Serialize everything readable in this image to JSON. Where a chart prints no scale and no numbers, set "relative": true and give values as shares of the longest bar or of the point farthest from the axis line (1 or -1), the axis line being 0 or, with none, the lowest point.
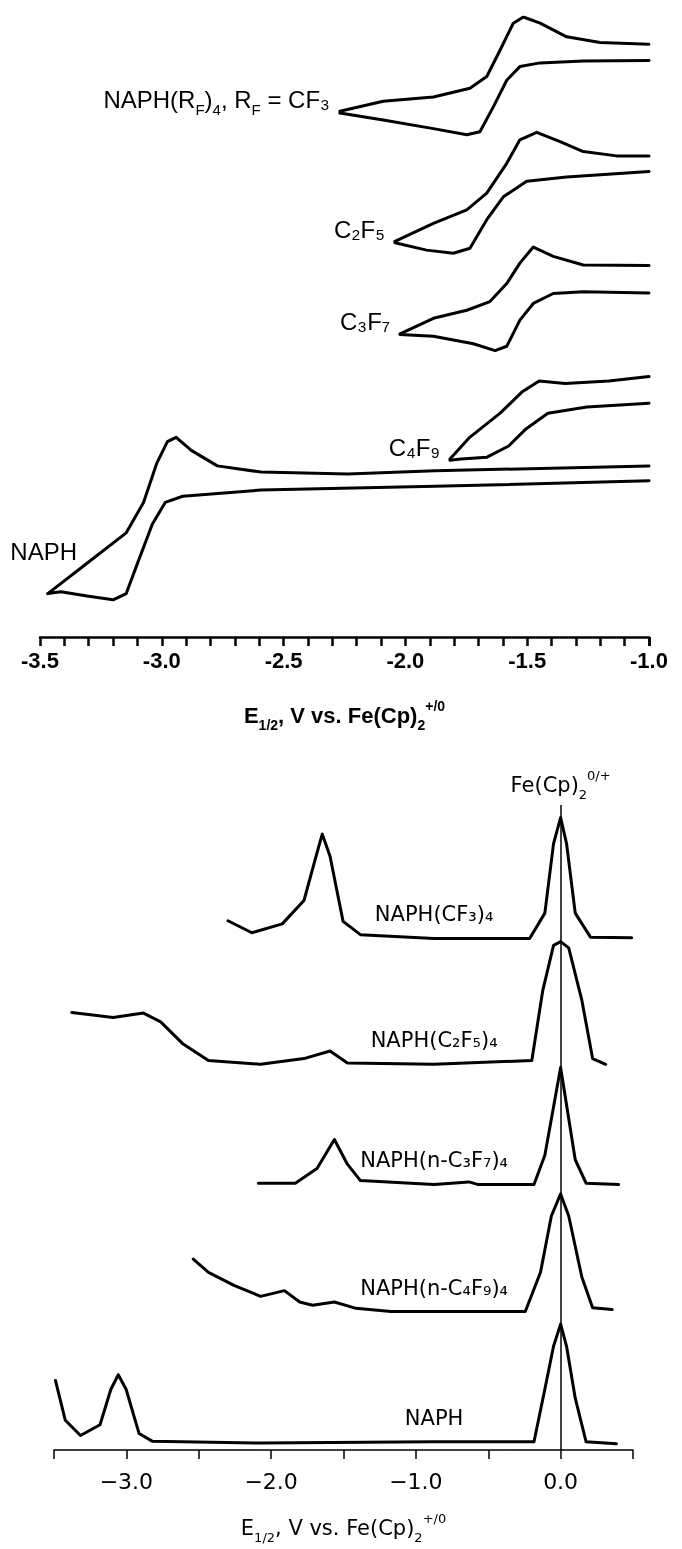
{
  "chart_data": [
    {
      "type": "line",
      "relative": true,
      "xlabel": "E$_{1/2}$, V vs. Fe(Cp)$_{2}$$^{+/0}$",
      "xlim": [
        -3.5,
        -1.0
      ],
      "xticks": [
        -3.5,
        {
          "value": -3.4,
          "label": null
        },
        {
          "value": -3.3,
          "label": null
        },
        {
          "value": -3.2,
          "label": null
        },
        {
          "value": -3.1,
          "label": null
        },
        {
          "value": -3.0,
          "label": "-3.0"
        },
        {
          "value": -2.9,
          "label": null
        },
        {
          "value": -2.8,
          "label": null
        },
        {
          "value": -2.7,
          "label": null
        },
        {
          "value": -2.6,
          "label": null
        },
        -2.5,
        {
          "value": -2.4,
          "label": null
        },
        {
          "value": -2.3,
          "label": null
        },
        {
          "value": -2.2,
          "label": null
        },
        {
          "value": -2.1,
          "label": null
        },
        {
          "value": -2.0,
          "label": "-2.0"
        },
        {
          "value": -1.9,
          "label": null
        },
        {
          "value": -1.8,
          "label": null
        },
        {
          "value": -1.7,
          "label": null
        },
        {
          "value": -1.6,
          "label": null
        },
        -1.5,
        {
          "value": -1.4,
          "label": null
        },
        {
          "value": -1.3,
          "label": null
        },
        {
          "value": -1.2,
          "label": null
        },
        {
          "value": -1.1,
          "label": null
        },
        {
          "value": -1.0,
          "label": "-1.0"
        }
      ],
      "series": [
        {
          "name": "NAPH(R$_{F}$)$_{4}$, R$_{F}$ = CF₃",
          "color": "#000000",
          "x": [
            -2.269,
            -2.091,
            -1.885,
            -1.735,
            -1.666,
            -1.612,
            -1.557,
            -1.516,
            -1.447,
            -1.338,
            -1.201,
            -1.0
          ],
          "values": [
            0.848,
            0.864,
            0.871,
            0.885,
            0.904,
            0.946,
            0.99,
            1.0,
            0.99,
            0.968,
            0.959,
            0.956
          ]
        },
        {
          "color": "#000000",
          "x": [
            -1.0,
            -1.27,
            -1.447,
            -1.53,
            -1.584,
            -1.639,
            -1.694,
            -1.748,
            -1.885,
            -2.091,
            -2.269
          ],
          "values": [
            0.93,
            0.929,
            0.926,
            0.92,
            0.898,
            0.855,
            0.815,
            0.81,
            0.82,
            0.834,
            0.845
          ]
        },
        {
          "name": "C₂F₅",
          "color": "#000000",
          "x": [
            -2.043,
            -1.885,
            -1.748,
            -1.666,
            -1.584,
            -1.53,
            -1.461,
            -1.365,
            -1.27,
            -1.133,
            -1.0
          ],
          "values": [
            0.638,
            0.667,
            0.689,
            0.716,
            0.764,
            0.802,
            0.814,
            0.799,
            0.783,
            0.776,
            0.776
          ]
        },
        {
          "color": "#000000",
          "x": [
            -1.0,
            -1.338,
            -1.502,
            -1.598,
            -1.666,
            -1.735,
            -1.803,
            -1.913,
            -2.043
          ],
          "values": [
            0.751,
            0.742,
            0.735,
            0.71,
            0.673,
            0.627,
            0.619,
            0.624,
            0.636
          ]
        },
        {
          "name": "C₃F₇",
          "color": "#000000",
          "x": [
            -2.022,
            -1.885,
            -1.748,
            -1.653,
            -1.584,
            -1.53,
            -1.475,
            -1.393,
            -1.27,
            -1.0
          ],
          "values": [
            0.489,
            0.514,
            0.527,
            0.541,
            0.57,
            0.603,
            0.629,
            0.614,
            0.6,
            0.599
          ]
        },
        {
          "color": "#000000",
          "x": [
            -1.0,
            -1.27,
            -1.393,
            -1.475,
            -1.53,
            -1.584,
            -1.632,
            -1.721,
            -1.885,
            -2.022
          ],
          "values": [
            0.555,
            0.557,
            0.554,
            0.538,
            0.511,
            0.469,
            0.462,
            0.473,
            0.485,
            0.488
          ]
        },
        {
          "name": "C₄F₉",
          "color": "#000000",
          "x": [
            -1.817,
            -1.736,
            -1.611,
            -1.522,
            -1.451,
            -1.344,
            -1.165,
            -1.0
          ],
          "values": [
            0.287,
            0.322,
            0.361,
            0.395,
            0.413,
            0.409,
            0.413,
            0.42
          ]
        },
        {
          "color": "#000000",
          "x": [
            -1.0,
            -1.255,
            -1.415,
            -1.504,
            -1.576,
            -1.665,
            -1.772,
            -1.817
          ],
          "values": [
            0.377,
            0.371,
            0.361,
            0.336,
            0.308,
            0.29,
            0.287,
            0.285
          ]
        },
        {
          "name": "NAPH",
          "color": "#000000",
          "x": [
            -3.468,
            -3.307,
            -3.146,
            -3.075,
            -3.021,
            -2.977,
            -2.941,
            -2.879,
            -2.772,
            -2.593,
            -2.236,
            -1.879,
            -1.0
          ],
          "values": [
            0.07,
            0.119,
            0.168,
            0.217,
            0.28,
            0.315,
            0.322,
            0.301,
            0.276,
            0.266,
            0.263,
            0.268,
            0.276
          ]
        },
        {
          "color": "#000000",
          "x": [
            -1.0,
            -1.879,
            -2.593,
            -2.914,
            -2.986,
            -3.039,
            -3.093,
            -3.146,
            -3.2,
            -3.307,
            -3.414,
            -3.468
          ],
          "values": [
            0.252,
            0.243,
            0.237,
            0.227,
            0.217,
            0.182,
            0.126,
            0.07,
            0.06,
            0.066,
            0.073,
            0.07
          ]
        }
      ]
    },
    {
      "type": "line",
      "relative": true,
      "xlabel": "E$_{1/2}$, V vs. Fe(Cp)$_{2}$$^{+/0}$",
      "xlim": [
        -3.5,
        0.5
      ],
      "xticks": [
        {
          "value": -3.5,
          "label": null
        },
        {
          "value": -3.0,
          "label": "−3.0"
        },
        {
          "value": -2.5,
          "label": null
        },
        {
          "value": -2.0,
          "label": "−2.0"
        },
        {
          "value": -1.5,
          "label": null
        },
        {
          "value": -1.0,
          "label": "−1.0"
        },
        {
          "value": -0.5,
          "label": null
        },
        {
          "value": 0.0,
          "label": "0.0"
        },
        {
          "value": 0.5,
          "label": null
        }
      ],
      "ref_lines": [
        {
          "axis": "x",
          "value": 0.0,
          "label": "Fe(Cp)$_{2}$$^{0/+}$"
        }
      ],
      "series": [
        {
          "name": "NAPH(CF₃)₄",
          "color": "#000000",
          "x": [
            -2.298,
            -2.133,
            -1.923,
            -1.773,
            -1.698,
            -1.647,
            -1.593,
            -1.503,
            -1.383,
            -0.874,
            -0.214,
            -0.109,
            -0.049,
            0.0,
            0.041,
            0.101,
            0.206,
            0.491
          ],
          "values": [
            0.837,
            0.818,
            0.832,
            0.869,
            0.932,
            0.974,
            0.939,
            0.836,
            0.815,
            0.809,
            0.809,
            0.849,
            0.959,
            1.0,
            0.959,
            0.849,
            0.811,
            0.81
          ]
        },
        {
          "name": "NAPH(C₂F₅)₄",
          "color": "#000000",
          "x": [
            -3.377,
            -3.092,
            -2.882,
            -2.763,
            -2.613,
            -2.433,
            -2.073,
            -1.773,
            -1.593,
            -1.473,
            -0.874,
            -0.199,
            -0.124,
            -0.049,
            0.0,
            0.056,
            0.146,
            0.221,
            0.311
          ],
          "values": [
            0.692,
            0.684,
            0.691,
            0.677,
            0.643,
            0.616,
            0.61,
            0.619,
            0.631,
            0.612,
            0.61,
            0.616,
            0.726,
            0.798,
            0.804,
            0.794,
            0.712,
            0.619,
            0.61
          ]
        },
        {
          "name": "NAPH(n-C₃F₇)₄",
          "color": "#000000",
          "x": [
            -2.088,
            -1.833,
            -1.683,
            -1.563,
            -1.473,
            -1.383,
            -0.874,
            -0.634,
            -0.574,
            -0.184,
            -0.109,
            0.0,
            0.101,
            0.176,
            0.401
          ],
          "values": [
            0.422,
            0.422,
            0.445,
            0.491,
            0.452,
            0.426,
            0.42,
            0.424,
            0.42,
            0.42,
            0.466,
            0.605,
            0.459,
            0.422,
            0.42
          ]
        },
        {
          "name": "NAPH(n-C₄F₉)₄",
          "color": "#000000",
          "x": [
            -2.538,
            -2.433,
            -2.253,
            -2.073,
            -1.908,
            -1.803,
            -1.713,
            -1.563,
            -1.413,
            -1.173,
            -0.874,
            -0.244,
            -0.139,
            -0.064,
            0.0,
            0.056,
            0.146,
            0.221,
            0.356
          ],
          "values": [
            0.302,
            0.281,
            0.26,
            0.243,
            0.252,
            0.234,
            0.229,
            0.234,
            0.224,
            0.219,
            0.219,
            0.219,
            0.281,
            0.37,
            0.405,
            0.37,
            0.274,
            0.225,
            0.222
          ]
        },
        {
          "name": "NAPH",
          "color": "#000000",
          "x": [
            -3.49,
            -3.422,
            -3.317,
            -3.182,
            -3.107,
            -3.056,
            -3.002,
            -2.912,
            -2.822,
            -2.073,
            -0.874,
            -0.184,
            -0.109,
            -0.049,
            0.0,
            0.041,
            0.101,
            0.176,
            0.386
          ],
          "values": [
            0.11,
            0.047,
            0.023,
            0.04,
            0.096,
            0.119,
            0.096,
            0.026,
            0.014,
            0.011,
            0.013,
            0.013,
            0.096,
            0.164,
            0.199,
            0.164,
            0.082,
            0.013,
            0.01
          ]
        }
      ]
    }
  ]
}
